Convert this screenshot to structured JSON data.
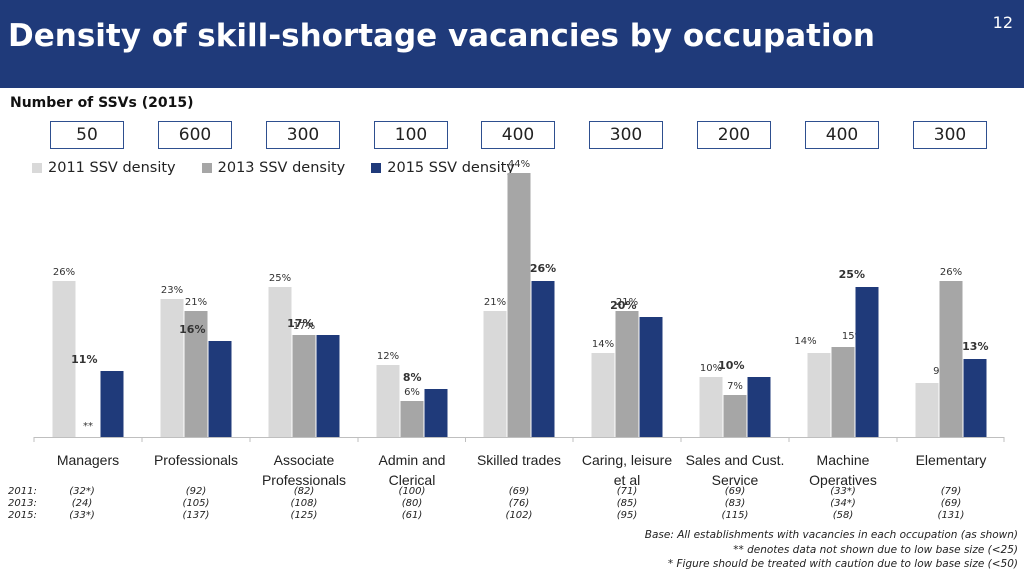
{
  "page": {
    "title": "Density of skill-shortage vacancies by occupation",
    "page_number": "12"
  },
  "ssv": {
    "label": "Number of SSVs (2015)",
    "values": [
      "50",
      "600",
      "300",
      "100",
      "400",
      "300",
      "200",
      "400",
      "300"
    ]
  },
  "colors": {
    "header": "#1f3a7a",
    "s2011": "#d9d9d9",
    "s2013": "#a6a6a6",
    "s2015": "#1f3a7a"
  },
  "chart_data": {
    "type": "bar",
    "categories": [
      "Managers",
      "Professionals",
      "Associate Professionals",
      "Admin and Clerical",
      "Skilled trades",
      "Caring, leisure et al",
      "Sales and Cust. Service",
      "Machine Operatives",
      "Elementary"
    ],
    "category_lines": [
      [
        "Managers"
      ],
      [
        "Professionals"
      ],
      [
        "Associate",
        "Professionals"
      ],
      [
        "Admin and",
        "Clerical"
      ],
      [
        "Skilled trades"
      ],
      [
        "Caring, leisure",
        "et al"
      ],
      [
        "Sales and Cust.",
        "Service"
      ],
      [
        "Machine",
        "Operatives"
      ],
      [
        "Elementary"
      ]
    ],
    "series": [
      {
        "name": "2011 SSV density",
        "values": [
          26,
          23,
          25,
          12,
          21,
          14,
          10,
          14,
          9
        ],
        "labels": [
          "26%",
          "23%",
          "25%",
          "12%",
          "21%",
          "14%",
          "10%",
          "14%",
          "9%"
        ]
      },
      {
        "name": "2013 SSV density",
        "values": [
          null,
          21,
          17,
          6,
          44,
          21,
          7,
          15,
          26
        ],
        "labels": [
          "**",
          "21%",
          "17%",
          "6%",
          "44%",
          "21%",
          "7%",
          "15%",
          "26%"
        ]
      },
      {
        "name": "2015 SSV density",
        "values": [
          11,
          16,
          17,
          8,
          26,
          20,
          10,
          25,
          13
        ],
        "labels": [
          "11%",
          "16%",
          "17%",
          "8%",
          "26%",
          "20%",
          "10%",
          "25%",
          "13%"
        ]
      }
    ],
    "ylim": [
      0,
      44
    ],
    "legend": "top-left",
    "grid": false
  },
  "base_table": {
    "row_labels": [
      "2011:",
      "2013:",
      "2015:"
    ],
    "rows": [
      [
        "(32*)",
        "(92)",
        "(82)",
        "(100)",
        "(69)",
        "(71)",
        "(69)",
        "(33*)",
        "(79)"
      ],
      [
        "(24)",
        "(105)",
        "(108)",
        "(80)",
        "(76)",
        "(85)",
        "(83)",
        "(34*)",
        "(69)"
      ],
      [
        "(33*)",
        "(137)",
        "(125)",
        "(61)",
        "(102)",
        "(95)",
        "(115)",
        "(58)",
        "(131)"
      ]
    ]
  },
  "footnotes": [
    "Base: All establishments with vacancies in each occupation (as shown)",
    "** denotes data not shown due to low base size (<25)",
    "* Figure should be treated with caution due to low base size (<50)"
  ]
}
